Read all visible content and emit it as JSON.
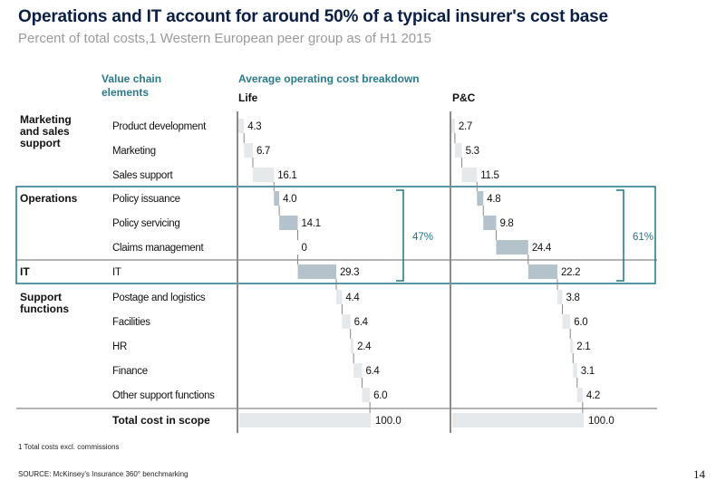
{
  "title": "Operations and IT account for around 50% of a typical insurer's cost base",
  "subtitle": "Percent of total costs,1 Western European peer group as of H1 2015",
  "headers": {
    "value_chain": "Value chain elements",
    "breakdown": "Average operating cost breakdown",
    "life": "Life",
    "pc": "P&C"
  },
  "footnote": "1 Total costs excl. commissions",
  "source": "SOURCE: McKinsey's Insurance 360° benchmarking",
  "page_number": "14",
  "colors": {
    "accent": "#1f7589",
    "bar_light": "#e5e9ec",
    "bar_dark": "#b3c2cb",
    "title": "#0b1f45"
  },
  "chart_data": {
    "type": "waterfall",
    "groups": [
      {
        "label": "Marketing and sales support",
        "items": [
          "Product development",
          "Marketing",
          "Sales support"
        ]
      },
      {
        "label": "Operations",
        "items": [
          "Policy issuance",
          "Policy servicing",
          "Claims management"
        ]
      },
      {
        "label": "IT",
        "items": [
          "IT"
        ]
      },
      {
        "label": "Support functions",
        "items": [
          "Postage and logistics",
          "Facilities",
          "HR",
          "Finance",
          "Other support functions"
        ]
      }
    ],
    "categories": [
      "Product development",
      "Marketing",
      "Sales support",
      "Policy issuance",
      "Policy servicing",
      "Claims management",
      "IT",
      "Postage and logistics",
      "Facilities",
      "HR",
      "Finance",
      "Other support functions"
    ],
    "total_label": "Total cost in scope",
    "series": [
      {
        "name": "Life",
        "values": [
          4.3,
          6.7,
          16.1,
          4.0,
          14.1,
          0,
          29.3,
          4.4,
          6.4,
          2.4,
          6.4,
          6.0
        ],
        "labels": [
          "4.3",
          "6.7",
          "16.1",
          "4.0",
          "14.1",
          "0",
          "29.3",
          "4.4",
          "6.4",
          "2.4",
          "6.4",
          "6.0"
        ],
        "total": "100.0",
        "ops_it_share": "47%"
      },
      {
        "name": "P&C",
        "values": [
          2.7,
          5.3,
          11.5,
          4.8,
          9.8,
          24.4,
          22.2,
          3.8,
          6.0,
          2.1,
          3.1,
          4.2
        ],
        "labels": [
          "2.7",
          "5.3",
          "11.5",
          "4.8",
          "9.8",
          "24.4",
          "22.2",
          "3.8",
          "6.0",
          "2.1",
          "3.1",
          "4.2"
        ],
        "total": "100.0",
        "ops_it_share": "61%"
      }
    ],
    "highlighted": [
      "Operations",
      "IT"
    ]
  }
}
